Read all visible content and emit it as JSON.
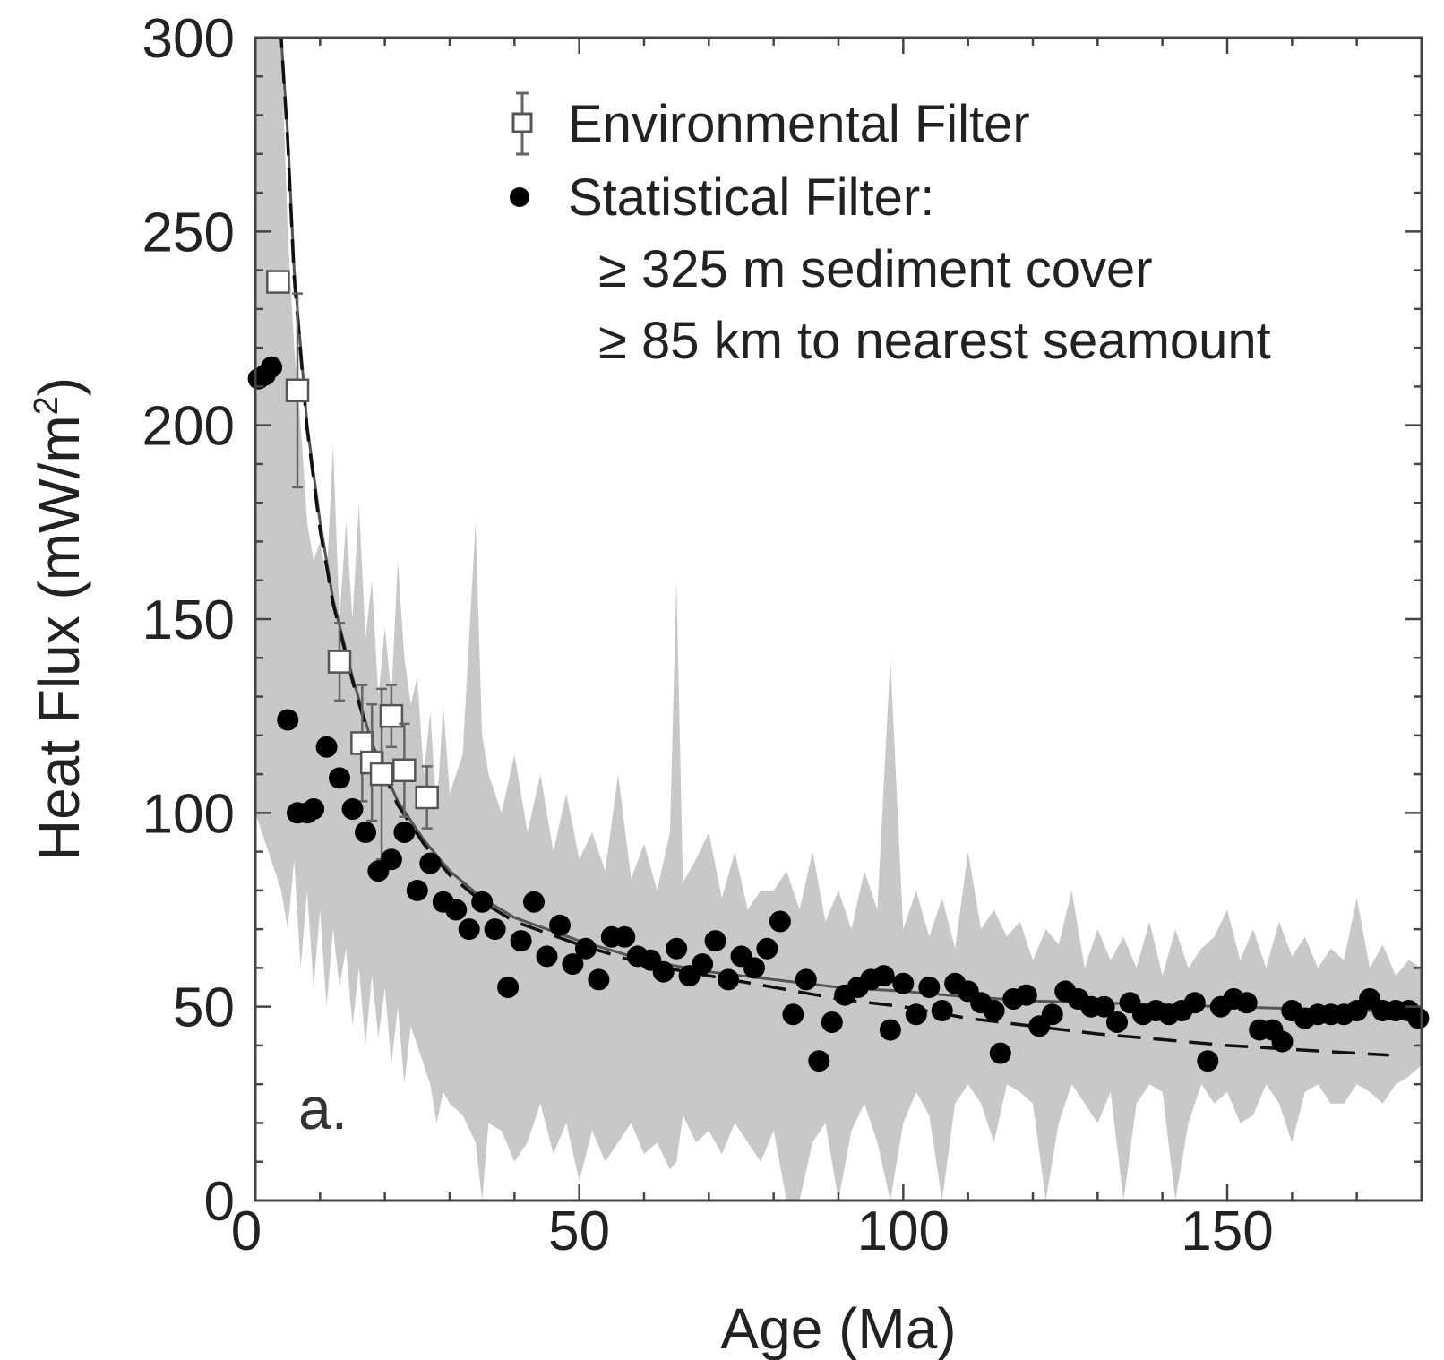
{
  "chart_data": {
    "type": "scatter",
    "panel_label": "a.",
    "xlabel": "Age (Ma)",
    "ylabel_main": "Heat Flux (mW/m",
    "ylabel_sup": "2",
    "ylabel_close": ")",
    "xlim": [
      0,
      180
    ],
    "ylim": [
      0,
      300
    ],
    "xticks": [
      {
        "value": 0,
        "label": "0"
      },
      {
        "value": 50,
        "label": "50"
      },
      {
        "value": 100,
        "label": "100"
      },
      {
        "value": 150,
        "label": "150"
      }
    ],
    "yticks": [
      {
        "value": 0,
        "label": "0"
      },
      {
        "value": 50,
        "label": "50"
      },
      {
        "value": 100,
        "label": "100"
      },
      {
        "value": 150,
        "label": "150"
      },
      {
        "value": 200,
        "label": "200"
      },
      {
        "value": 250,
        "label": "250"
      },
      {
        "value": 300,
        "label": "300"
      }
    ],
    "legend": {
      "placement": "top-right",
      "entries": [
        {
          "label": "Environmental Filter",
          "marker": "open-square-errorbar"
        },
        {
          "label": "Statistical Filter:",
          "marker": "filled-circle"
        }
      ],
      "notes": [
        "≥ 325 m sediment cover",
        "≥ 85 km to nearest seamount"
      ]
    },
    "colors": {
      "band": "#c8c8c8",
      "points": "#000000",
      "axis": "#444444",
      "fit_solid": "#555555",
      "fit_dashed": "#111111"
    },
    "series": [
      {
        "name": "Environmental Filter",
        "points": [
          {
            "x": 3.5,
            "y": 237,
            "err": 0
          },
          {
            "x": 6.5,
            "y": 209,
            "err": 25
          },
          {
            "x": 13,
            "y": 139,
            "err": 10
          },
          {
            "x": 16.5,
            "y": 118,
            "err": 15
          },
          {
            "x": 18,
            "y": 113,
            "err": 15
          },
          {
            "x": 19.5,
            "y": 110,
            "err": 22
          },
          {
            "x": 21,
            "y": 125,
            "err": 8
          },
          {
            "x": 23,
            "y": 111,
            "err": 12
          },
          {
            "x": 26.5,
            "y": 104,
            "err": 8
          }
        ]
      },
      {
        "name": "Statistical Filter:",
        "points": [
          {
            "x": 0.5,
            "y": 212
          },
          {
            "x": 1.5,
            "y": 213
          },
          {
            "x": 2.5,
            "y": 215
          },
          {
            "x": 5,
            "y": 124
          },
          {
            "x": 6.5,
            "y": 100
          },
          {
            "x": 8,
            "y": 100
          },
          {
            "x": 9,
            "y": 101
          },
          {
            "x": 11,
            "y": 117
          },
          {
            "x": 13,
            "y": 109
          },
          {
            "x": 15,
            "y": 101
          },
          {
            "x": 17,
            "y": 95
          },
          {
            "x": 19,
            "y": 85
          },
          {
            "x": 21,
            "y": 88
          },
          {
            "x": 23,
            "y": 95
          },
          {
            "x": 25,
            "y": 80
          },
          {
            "x": 27,
            "y": 87
          },
          {
            "x": 29,
            "y": 77
          },
          {
            "x": 31,
            "y": 75
          },
          {
            "x": 33,
            "y": 70
          },
          {
            "x": 35,
            "y": 77
          },
          {
            "x": 37,
            "y": 70
          },
          {
            "x": 39,
            "y": 55
          },
          {
            "x": 41,
            "y": 67
          },
          {
            "x": 43,
            "y": 77
          },
          {
            "x": 45,
            "y": 63
          },
          {
            "x": 47,
            "y": 71
          },
          {
            "x": 49,
            "y": 61
          },
          {
            "x": 51,
            "y": 65
          },
          {
            "x": 53,
            "y": 57
          },
          {
            "x": 55,
            "y": 68
          },
          {
            "x": 57,
            "y": 68
          },
          {
            "x": 59,
            "y": 63
          },
          {
            "x": 61,
            "y": 62
          },
          {
            "x": 63,
            "y": 59
          },
          {
            "x": 65,
            "y": 65
          },
          {
            "x": 67,
            "y": 58
          },
          {
            "x": 69,
            "y": 61
          },
          {
            "x": 71,
            "y": 67
          },
          {
            "x": 73,
            "y": 57
          },
          {
            "x": 75,
            "y": 63
          },
          {
            "x": 77,
            "y": 60
          },
          {
            "x": 79,
            "y": 65
          },
          {
            "x": 81,
            "y": 72
          },
          {
            "x": 85,
            "y": 57
          },
          {
            "x": 83,
            "y": 48
          },
          {
            "x": 87,
            "y": 36
          },
          {
            "x": 89,
            "y": 46
          },
          {
            "x": 91,
            "y": 53
          },
          {
            "x": 93,
            "y": 55
          },
          {
            "x": 95,
            "y": 57
          },
          {
            "x": 97,
            "y": 58
          },
          {
            "x": 98,
            "y": 44
          },
          {
            "x": 100,
            "y": 56
          },
          {
            "x": 102,
            "y": 48
          },
          {
            "x": 104,
            "y": 55
          },
          {
            "x": 106,
            "y": 49
          },
          {
            "x": 108,
            "y": 56
          },
          {
            "x": 110,
            "y": 54
          },
          {
            "x": 112,
            "y": 51
          },
          {
            "x": 114,
            "y": 49
          },
          {
            "x": 115,
            "y": 38
          },
          {
            "x": 117,
            "y": 52
          },
          {
            "x": 119,
            "y": 53
          },
          {
            "x": 121,
            "y": 45
          },
          {
            "x": 123,
            "y": 48
          },
          {
            "x": 125,
            "y": 54
          },
          {
            "x": 127,
            "y": 52
          },
          {
            "x": 129,
            "y": 50
          },
          {
            "x": 131,
            "y": 50
          },
          {
            "x": 133,
            "y": 46
          },
          {
            "x": 135,
            "y": 51
          },
          {
            "x": 137,
            "y": 48
          },
          {
            "x": 139,
            "y": 49
          },
          {
            "x": 141,
            "y": 48
          },
          {
            "x": 143,
            "y": 49
          },
          {
            "x": 145,
            "y": 51
          },
          {
            "x": 147,
            "y": 36
          },
          {
            "x": 149,
            "y": 50
          },
          {
            "x": 151,
            "y": 52
          },
          {
            "x": 153,
            "y": 51
          },
          {
            "x": 155,
            "y": 44
          },
          {
            "x": 157,
            "y": 44
          },
          {
            "x": 158.5,
            "y": 41
          },
          {
            "x": 160,
            "y": 49
          },
          {
            "x": 162,
            "y": 47
          },
          {
            "x": 164,
            "y": 48
          },
          {
            "x": 166,
            "y": 48
          },
          {
            "x": 168,
            "y": 48
          },
          {
            "x": 170,
            "y": 49
          },
          {
            "x": 172,
            "y": 52
          },
          {
            "x": 174,
            "y": 49
          },
          {
            "x": 176,
            "y": 49
          },
          {
            "x": 178,
            "y": 49
          },
          {
            "x": 179.5,
            "y": 47
          }
        ]
      }
    ],
    "band": {
      "x": [
        0,
        1,
        2,
        3,
        4,
        5,
        6,
        7,
        8,
        9,
        10,
        11,
        12,
        13,
        14,
        15,
        16,
        17,
        18,
        19,
        20,
        21,
        22,
        23,
        24,
        25,
        26,
        27,
        28,
        29,
        30,
        32,
        34,
        35,
        36,
        38,
        40,
        42,
        44,
        46,
        48,
        50,
        52,
        54,
        56,
        58,
        60,
        62,
        64,
        65,
        66,
        68,
        70,
        72,
        74,
        76,
        78,
        80,
        82,
        84,
        86,
        88,
        90,
        92,
        94,
        96,
        98,
        100,
        102,
        104,
        106,
        108,
        110,
        112,
        114,
        116,
        118,
        120,
        122,
        124,
        126,
        128,
        130,
        132,
        134,
        136,
        138,
        140,
        142,
        144,
        146,
        148,
        150,
        152,
        154,
        156,
        158,
        160,
        162,
        164,
        166,
        168,
        170,
        172,
        174,
        176,
        178,
        180
      ],
      "upper": [
        300,
        300,
        300,
        300,
        300,
        250,
        220,
        200,
        175,
        165,
        170,
        160,
        195,
        150,
        175,
        150,
        180,
        145,
        160,
        130,
        148,
        130,
        165,
        140,
        128,
        135,
        110,
        126,
        100,
        128,
        105,
        115,
        175,
        120,
        110,
        100,
        115,
        95,
        110,
        90,
        105,
        88,
        95,
        85,
        110,
        83,
        92,
        80,
        95,
        160,
        82,
        88,
        95,
        78,
        90,
        75,
        80,
        80,
        85,
        75,
        90,
        72,
        80,
        70,
        85,
        75,
        140,
        70,
        80,
        68,
        78,
        65,
        90,
        70,
        75,
        68,
        72,
        62,
        70,
        66,
        80,
        60,
        70,
        62,
        68,
        60,
        72,
        58,
        70,
        60,
        65,
        68,
        75,
        62,
        70,
        60,
        72,
        63,
        68,
        60,
        65,
        62,
        78,
        60,
        66,
        58,
        62,
        60
      ],
      "lower": [
        100,
        95,
        90,
        85,
        80,
        70,
        88,
        60,
        80,
        55,
        75,
        50,
        70,
        55,
        65,
        45,
        60,
        40,
        58,
        42,
        55,
        35,
        50,
        30,
        45,
        40,
        35,
        30,
        20,
        28,
        25,
        22,
        15,
        0,
        20,
        18,
        10,
        15,
        25,
        12,
        20,
        5,
        18,
        10,
        15,
        20,
        12,
        15,
        8,
        10,
        22,
        15,
        18,
        12,
        20,
        15,
        10,
        18,
        0,
        0,
        15,
        20,
        0,
        18,
        25,
        15,
        0,
        20,
        28,
        22,
        0,
        25,
        30,
        25,
        15,
        30,
        28,
        25,
        0,
        20,
        30,
        25,
        20,
        28,
        0,
        25,
        30,
        28,
        0,
        20,
        30,
        25,
        28,
        20,
        22,
        30,
        25,
        15,
        28,
        30,
        25,
        25,
        30,
        28,
        25,
        30,
        32,
        35
      ]
    },
    "fits": [
      {
        "style": "solid",
        "x": [
          2,
          3,
          4,
          5,
          6,
          8,
          10,
          12,
          15,
          18,
          22,
          26,
          30,
          35,
          40,
          45,
          50,
          60,
          70,
          80,
          90,
          100,
          110,
          120,
          130,
          140,
          150,
          160,
          170,
          180
        ],
        "y": [
          300,
          300,
          300,
          275,
          240,
          200,
          175,
          155,
          135,
          118,
          103,
          93,
          85,
          78,
          73,
          70,
          67,
          62,
          59,
          57,
          55,
          54,
          52.5,
          51.5,
          51,
          50.5,
          50,
          49.5,
          49,
          48.8
        ]
      },
      {
        "style": "dashed",
        "x": [
          2,
          3,
          4,
          5,
          6,
          8,
          10,
          12,
          15,
          18,
          22,
          26,
          30,
          35,
          40,
          45,
          50,
          60,
          70,
          80,
          90,
          100,
          110,
          120,
          130,
          140,
          150,
          160,
          170,
          175
        ],
        "y": [
          300,
          300,
          300,
          273,
          238,
          199,
          173,
          154,
          134,
          117,
          102,
          92,
          84,
          77,
          72,
          69,
          66,
          61,
          58,
          55,
          52,
          50,
          47,
          45,
          43,
          41.5,
          40,
          39,
          38,
          37.5
        ]
      }
    ]
  }
}
